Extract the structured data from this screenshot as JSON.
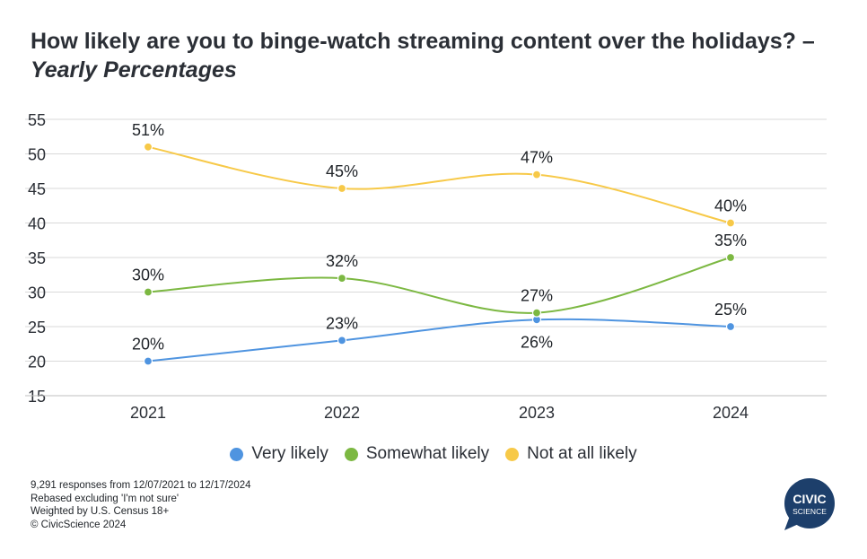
{
  "title": {
    "main": "How likely are you to binge-watch streaming content over the holidays? – ",
    "emphasis": "Yearly Percentages"
  },
  "chart_data": {
    "type": "line",
    "categories": [
      "2021",
      "2022",
      "2023",
      "2024"
    ],
    "series": [
      {
        "name": "Very likely",
        "color": "#4f94e0",
        "values": [
          20,
          23,
          26,
          25
        ],
        "labels": [
          "20%",
          "23%",
          "26%",
          "25%"
        ]
      },
      {
        "name": "Somewhat likely",
        "color": "#7cb842",
        "values": [
          30,
          32,
          27,
          35
        ],
        "labels": [
          "30%",
          "32%",
          "27%",
          "35%"
        ]
      },
      {
        "name": "Not at all likely",
        "color": "#f7c948",
        "values": [
          51,
          45,
          47,
          40
        ],
        "labels": [
          "51%",
          "45%",
          "47%",
          "40%"
        ]
      }
    ],
    "y_ticks": [
      "55",
      "50",
      "45",
      "40",
      "35",
      "30",
      "25",
      "20",
      "15"
    ],
    "ylim": [
      15,
      55
    ],
    "grid": true,
    "legend_position": "bottom"
  },
  "legend": {
    "items": [
      {
        "label": "Very likely",
        "color": "#4f94e0"
      },
      {
        "label": "Somewhat likely",
        "color": "#7cb842"
      },
      {
        "label": "Not at all likely",
        "color": "#f7c948"
      }
    ]
  },
  "footnotes": {
    "responses": "9,291 responses from 12/07/2021 to 12/17/2024",
    "rebased": "Rebased excluding 'I'm not sure'",
    "weighted": "Weighted by U.S. Census 18+",
    "copyright": "© CivicScience 2024"
  },
  "logo": {
    "line1": "CIVIC",
    "line2": "SCIENCE",
    "color": "#1d3f6b"
  }
}
